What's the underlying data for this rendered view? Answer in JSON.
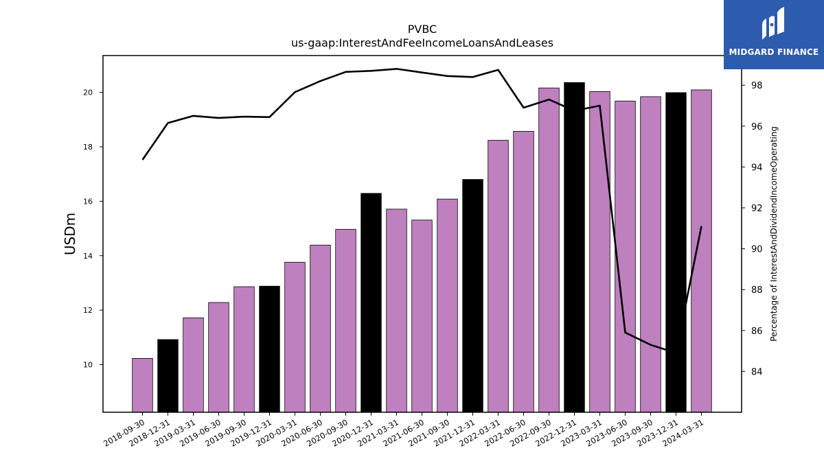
{
  "colors": {
    "bar_regular": "#bf80bf",
    "bar_year_end": "#000000",
    "line": "#000000",
    "logo_bg": "#2d5bad"
  },
  "logo": {
    "text": "MIDGARD FINANCE",
    "icon": "midgard-logo-icon"
  },
  "chart_data": {
    "type": "bar",
    "title": "PVBC",
    "subtitle": "us-gaap:InterestAndFeeIncomeLoansAndLeases",
    "ylabel": "USDm",
    "y2label": "Percentage of InterestAndDividendIncomeOperating",
    "ylim": [
      8.25,
      21.35
    ],
    "y2lim": [
      82.0,
      99.45
    ],
    "yticks": [
      10,
      12,
      14,
      16,
      18,
      20
    ],
    "y2ticks": [
      84,
      86,
      88,
      90,
      92,
      94,
      96,
      98
    ],
    "categories": [
      "2018-09-30",
      "2018-12-31",
      "2019-03-31",
      "2019-06-30",
      "2019-09-30",
      "2019-12-31",
      "2020-03-31",
      "2020-06-30",
      "2020-09-30",
      "2020-12-31",
      "2021-03-31",
      "2021-06-30",
      "2021-09-30",
      "2021-12-31",
      "2022-03-31",
      "2022-06-30",
      "2022-09-30",
      "2022-12-31",
      "2023-03-31",
      "2023-06-30",
      "2023-09-30",
      "2023-12-31",
      "2024-03-31"
    ],
    "series": [
      {
        "axis": "left",
        "kind": "bar",
        "values": [
          10.23,
          10.92,
          11.72,
          12.28,
          12.86,
          12.88,
          13.76,
          14.39,
          14.97,
          16.29,
          15.71,
          15.31,
          16.08,
          16.8,
          18.24,
          18.57,
          20.16,
          20.36,
          20.03,
          19.68,
          19.84,
          19.99,
          20.09
        ]
      },
      {
        "axis": "right",
        "kind": "line",
        "values": [
          94.35,
          96.15,
          96.5,
          96.4,
          96.46,
          96.44,
          97.66,
          98.2,
          98.65,
          98.7,
          98.8,
          98.62,
          98.45,
          98.4,
          98.75,
          96.9,
          97.3,
          96.75,
          97.0,
          85.9,
          85.3,
          84.9,
          91.1
        ]
      }
    ]
  }
}
